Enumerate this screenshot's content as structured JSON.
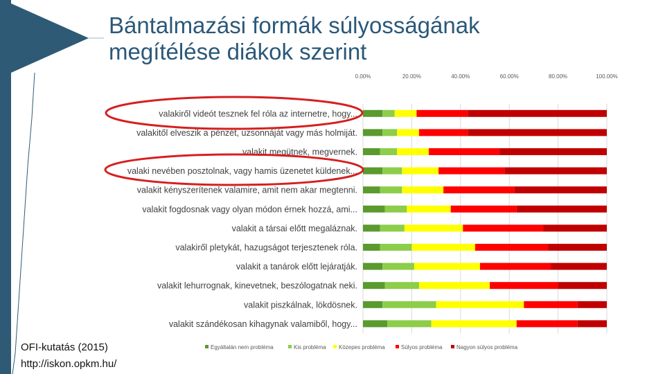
{
  "slide": {
    "title": "Bántalmazási formák súlyosságának megítélése diákok szerint",
    "source": "OFI-kutatás (2015)",
    "url": "http://iskon.opkm.hu/"
  },
  "colors": {
    "sidebar": "#2e5a75",
    "title": "#2b5878",
    "highlight_oval": "#d61f1f"
  },
  "chart_data": {
    "type": "bar",
    "stacked": true,
    "orientation": "horizontal",
    "percent": true,
    "xlim": [
      0,
      100
    ],
    "xticks": [
      "0.00%",
      "20.00%",
      "40.00%",
      "60.00%",
      "80.00%",
      "100.00%"
    ],
    "grid": true,
    "legend_position": "bottom",
    "categories": [
      "valakiről videót tesznek fel róla az internetre, hogy...",
      "valakitől elveszik a pénzét, uzsonnáját vagy más holmiját.",
      "valakit megütnek, megvernek.",
      "valaki nevében posztolnak, vagy hamis üzenetet küldenek...",
      "valakit kényszerítenek valamire, amit nem akar megtenni.",
      "valakit fogdosnak vagy olyan módon érnek hozzá, ami...",
      "valakit a társai előtt megaláznak.",
      "valakiről pletykát, hazugságot terjesztenek róla.",
      "valakit a tanárok előtt lejáratják.",
      "valakit lehurrognak, kinevetnek, beszólogatnak neki.",
      "valakit piszkálnak, lökdösnek.",
      "valakit szándékosan kihagynak valamiből, hogy..."
    ],
    "series": [
      {
        "name": "Egyáltalán nem probléma",
        "color": "#5a9a2e",
        "values": [
          8,
          8,
          7,
          8,
          7,
          9,
          7,
          7,
          8,
          9,
          8,
          10
        ]
      },
      {
        "name": "Kis probléma",
        "color": "#8ccd4a",
        "values": [
          5,
          6,
          7,
          8,
          9,
          9,
          10,
          13,
          13,
          14,
          22,
          18
        ]
      },
      {
        "name": "Közepes probléma",
        "color": "#ffff00",
        "values": [
          9,
          9,
          13,
          15,
          17,
          18,
          24,
          26,
          27,
          29,
          36,
          35
        ]
      },
      {
        "name": "Súlyos probléma",
        "color": "#ff0000",
        "values": [
          21,
          20,
          29,
          27,
          29,
          27,
          33,
          30,
          29,
          28,
          22,
          25
        ]
      },
      {
        "name": "Nagyon súlyos probléma",
        "color": "#c00000",
        "values": [
          57,
          57,
          44,
          42,
          38,
          37,
          26,
          24,
          23,
          20,
          12,
          12
        ]
      }
    ]
  }
}
